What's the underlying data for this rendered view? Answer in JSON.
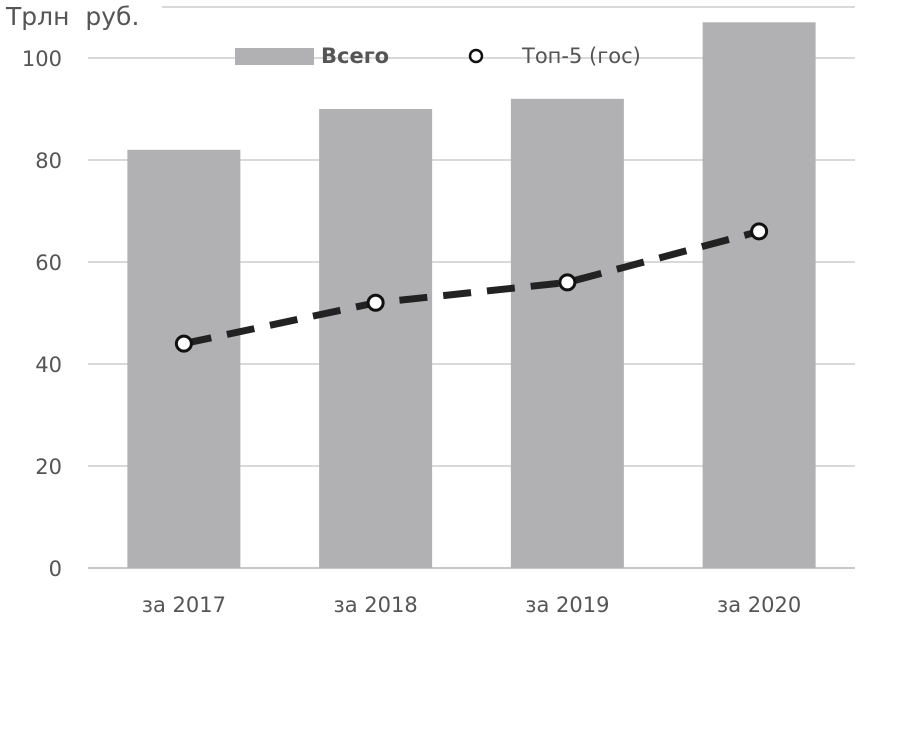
{
  "chart_data": {
    "type": "bar",
    "unit_label": "Трлн  руб.",
    "categories": [
      "за 2017",
      "за 2018",
      "за 2019",
      "за 2020"
    ],
    "series": [
      {
        "name": "Всего",
        "type": "bar",
        "color": "#b1b1b3",
        "values": [
          82,
          90,
          92,
          107
        ]
      },
      {
        "name": "Топ-5 (гос)",
        "type": "line",
        "style": "dashed",
        "marker": "open-circle",
        "color": "#222222",
        "values": [
          44,
          52,
          56,
          66
        ]
      }
    ],
    "ylim": [
      0,
      110
    ],
    "yticks": [
      0,
      20,
      40,
      60,
      80,
      100
    ],
    "grid": true,
    "legend_position": "top"
  }
}
